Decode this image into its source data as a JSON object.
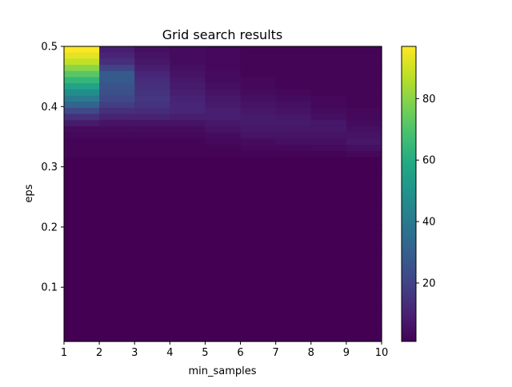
{
  "chart_data": {
    "type": "heatmap",
    "title": "Grid search results",
    "xlabel": "min_samples",
    "ylabel": "eps",
    "xlim": [
      1,
      10
    ],
    "ylim": [
      0.01,
      0.5
    ],
    "x_ticks": [
      "1",
      "2",
      "3",
      "4",
      "5",
      "6",
      "7",
      "8",
      "9",
      "10"
    ],
    "y_ticks": [
      {
        "value": 0.1,
        "label": "0.1"
      },
      {
        "value": 0.2,
        "label": "0.2"
      },
      {
        "value": 0.3,
        "label": "0.3"
      },
      {
        "value": 0.4,
        "label": "0.4"
      },
      {
        "value": 0.5,
        "label": "0.5"
      }
    ],
    "colormap": "viridis",
    "colorbar": {
      "vmin": 1,
      "vmax": 97,
      "ticks": [
        {
          "value": 20,
          "label": "20"
        },
        {
          "value": 40,
          "label": "40"
        },
        {
          "value": 60,
          "label": "60"
        },
        {
          "value": 80,
          "label": "80"
        }
      ]
    },
    "grid": false,
    "x_bins": 9,
    "y_bins": 48,
    "description_of_values": "number of clusters; high values at low min_samples and eps near 0.5",
    "rows_top_region": [
      [
        97,
        9,
        5,
        4,
        3,
        2,
        2,
        2,
        2
      ],
      [
        93,
        11,
        6,
        4,
        3,
        2,
        2,
        2,
        2
      ],
      [
        88,
        14,
        7,
        4,
        3,
        2,
        2,
        2,
        2
      ],
      [
        80,
        20,
        9,
        5,
        3,
        2,
        2,
        2,
        2
      ],
      [
        72,
        28,
        11,
        6,
        4,
        2,
        2,
        2,
        2
      ],
      [
        64,
        28,
        13,
        7,
        4,
        3,
        2,
        2,
        2
      ],
      [
        56,
        26,
        14,
        8,
        5,
        3,
        2,
        2,
        2
      ],
      [
        48,
        24,
        15,
        9,
        6,
        4,
        3,
        2,
        2
      ],
      [
        40,
        22,
        16,
        10,
        7,
        5,
        4,
        3,
        2
      ],
      [
        32,
        18,
        15,
        11,
        8,
        6,
        5,
        3,
        2
      ],
      [
        22,
        14,
        13,
        11,
        9,
        7,
        6,
        4,
        3
      ],
      [
        14,
        10,
        10,
        9,
        9,
        8,
        7,
        5,
        3
      ],
      [
        8,
        6,
        6,
        6,
        7,
        8,
        8,
        7,
        4
      ],
      [
        4,
        4,
        4,
        4,
        6,
        7,
        7,
        7,
        5
      ],
      [
        3,
        3,
        3,
        3,
        4,
        6,
        6,
        6,
        6
      ],
      [
        2,
        2,
        2,
        2,
        3,
        4,
        5,
        5,
        7
      ],
      [
        2,
        2,
        2,
        2,
        2,
        3,
        3,
        4,
        5
      ],
      [
        2,
        2,
        2,
        2,
        2,
        2,
        2,
        2,
        3
      ]
    ],
    "rows_below_value": 1
  }
}
